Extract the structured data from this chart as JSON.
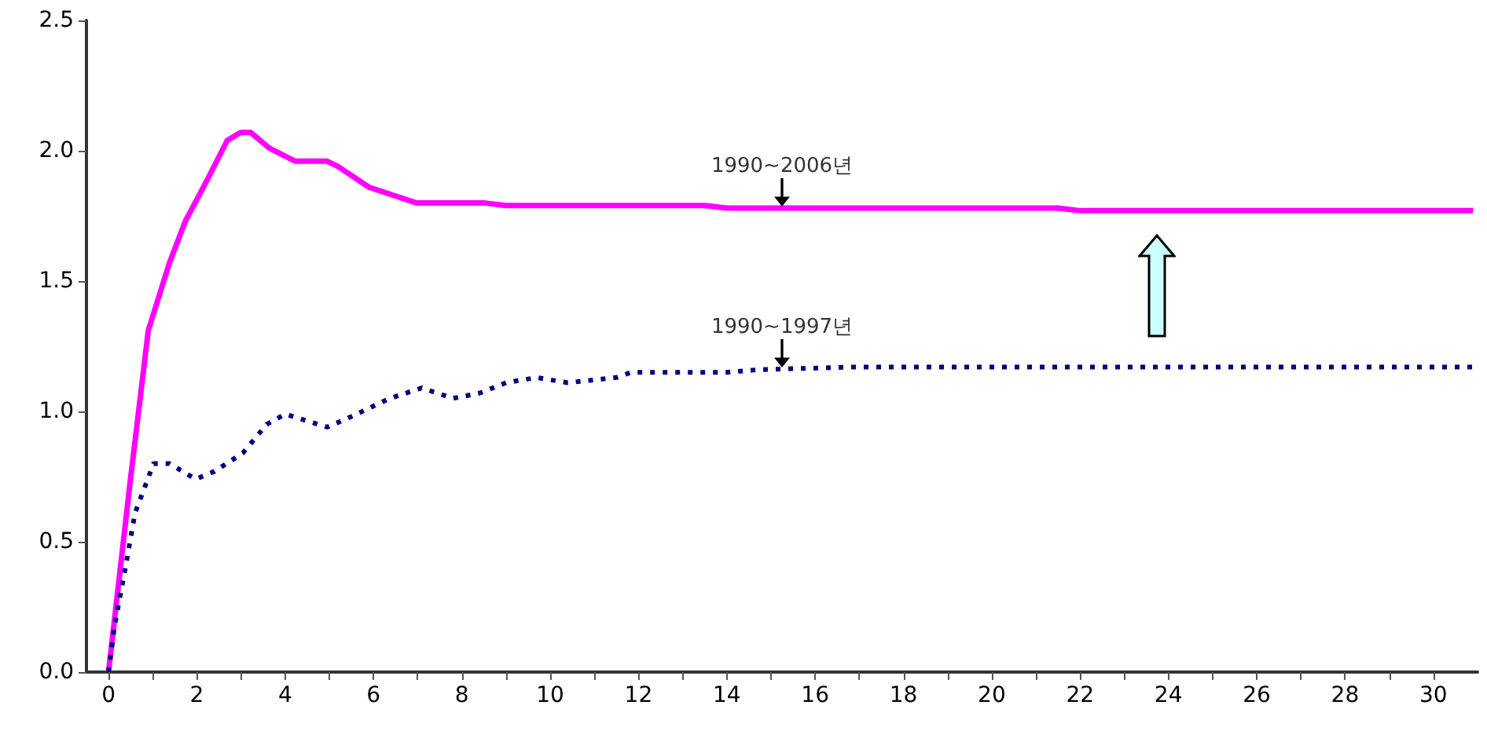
{
  "chart_data": {
    "type": "line",
    "x": [
      0,
      0.49,
      0.9,
      1.38,
      1.74,
      2.21,
      2.69,
      2.99,
      3.22,
      3.64,
      4.23,
      4.95,
      5.19,
      5.9,
      6.97,
      8.5,
      8.99,
      13.5,
      14,
      21.5,
      22,
      30.9
    ],
    "series": [
      {
        "name": "1990~2006년",
        "color": "#ff00ff",
        "values": [
          0,
          0.73,
          1.31,
          1.57,
          1.73,
          1.88,
          2.04,
          2.07,
          2.07,
          2.01,
          1.96,
          1.96,
          1.94,
          1.86,
          1.8,
          1.8,
          1.79,
          1.79,
          1.78,
          1.78,
          1.77,
          1.77
        ]
      },
      {
        "name": "1990~1997년",
        "color": "#000080",
        "line_style": "dotted",
        "x": [
          0,
          0.13,
          0.37,
          0.6,
          1.02,
          1.38,
          1.97,
          2.4,
          3.04,
          3.58,
          4.0,
          4.95,
          5.37,
          6.37,
          7.09,
          7.8,
          8.4,
          9.0,
          9.7,
          10.4,
          11.5,
          11.84,
          14,
          14.7,
          16.8,
          30.9
        ],
        "values": [
          0,
          0.17,
          0.39,
          0.61,
          0.8,
          0.8,
          0.74,
          0.77,
          0.84,
          0.95,
          0.99,
          0.94,
          0.97,
          1.05,
          1.09,
          1.05,
          1.07,
          1.11,
          1.13,
          1.11,
          1.13,
          1.15,
          1.15,
          1.16,
          1.17,
          1.17
        ]
      }
    ],
    "xlim": [
      -0.5,
      31
    ],
    "xticks": [
      0,
      {
        "value": 1,
        "label": null
      },
      2,
      {
        "value": 3,
        "label": null
      },
      4,
      {
        "value": 5,
        "label": null
      },
      6,
      {
        "value": 7,
        "label": null
      },
      8,
      {
        "value": 9,
        "label": null
      },
      10,
      {
        "value": 11,
        "label": null
      },
      12,
      {
        "value": 13,
        "label": null
      },
      14,
      {
        "value": 15,
        "label": null
      },
      16,
      {
        "value": 17,
        "label": null
      },
      18,
      {
        "value": 19,
        "label": null
      },
      20,
      {
        "value": 21,
        "label": null
      },
      22,
      {
        "value": 23,
        "label": null
      },
      24,
      {
        "value": 25,
        "label": null
      },
      26,
      {
        "value": 27,
        "label": null
      },
      28,
      {
        "value": 29,
        "label": null
      },
      30
    ],
    "ylim": [
      0,
      2.5
    ],
    "yticks": [
      {
        "value": 0,
        "label": "0.0"
      },
      {
        "value": 0.5,
        "label": "0.5"
      },
      {
        "value": 1,
        "label": "1.0"
      },
      {
        "value": 1.5,
        "label": "1.5"
      },
      {
        "value": 2,
        "label": "2.0"
      },
      {
        "value": 2.5,
        "label": "2.5"
      }
    ],
    "grid": false,
    "legend": false,
    "marker": "none",
    "line_style": "solid"
  }
}
